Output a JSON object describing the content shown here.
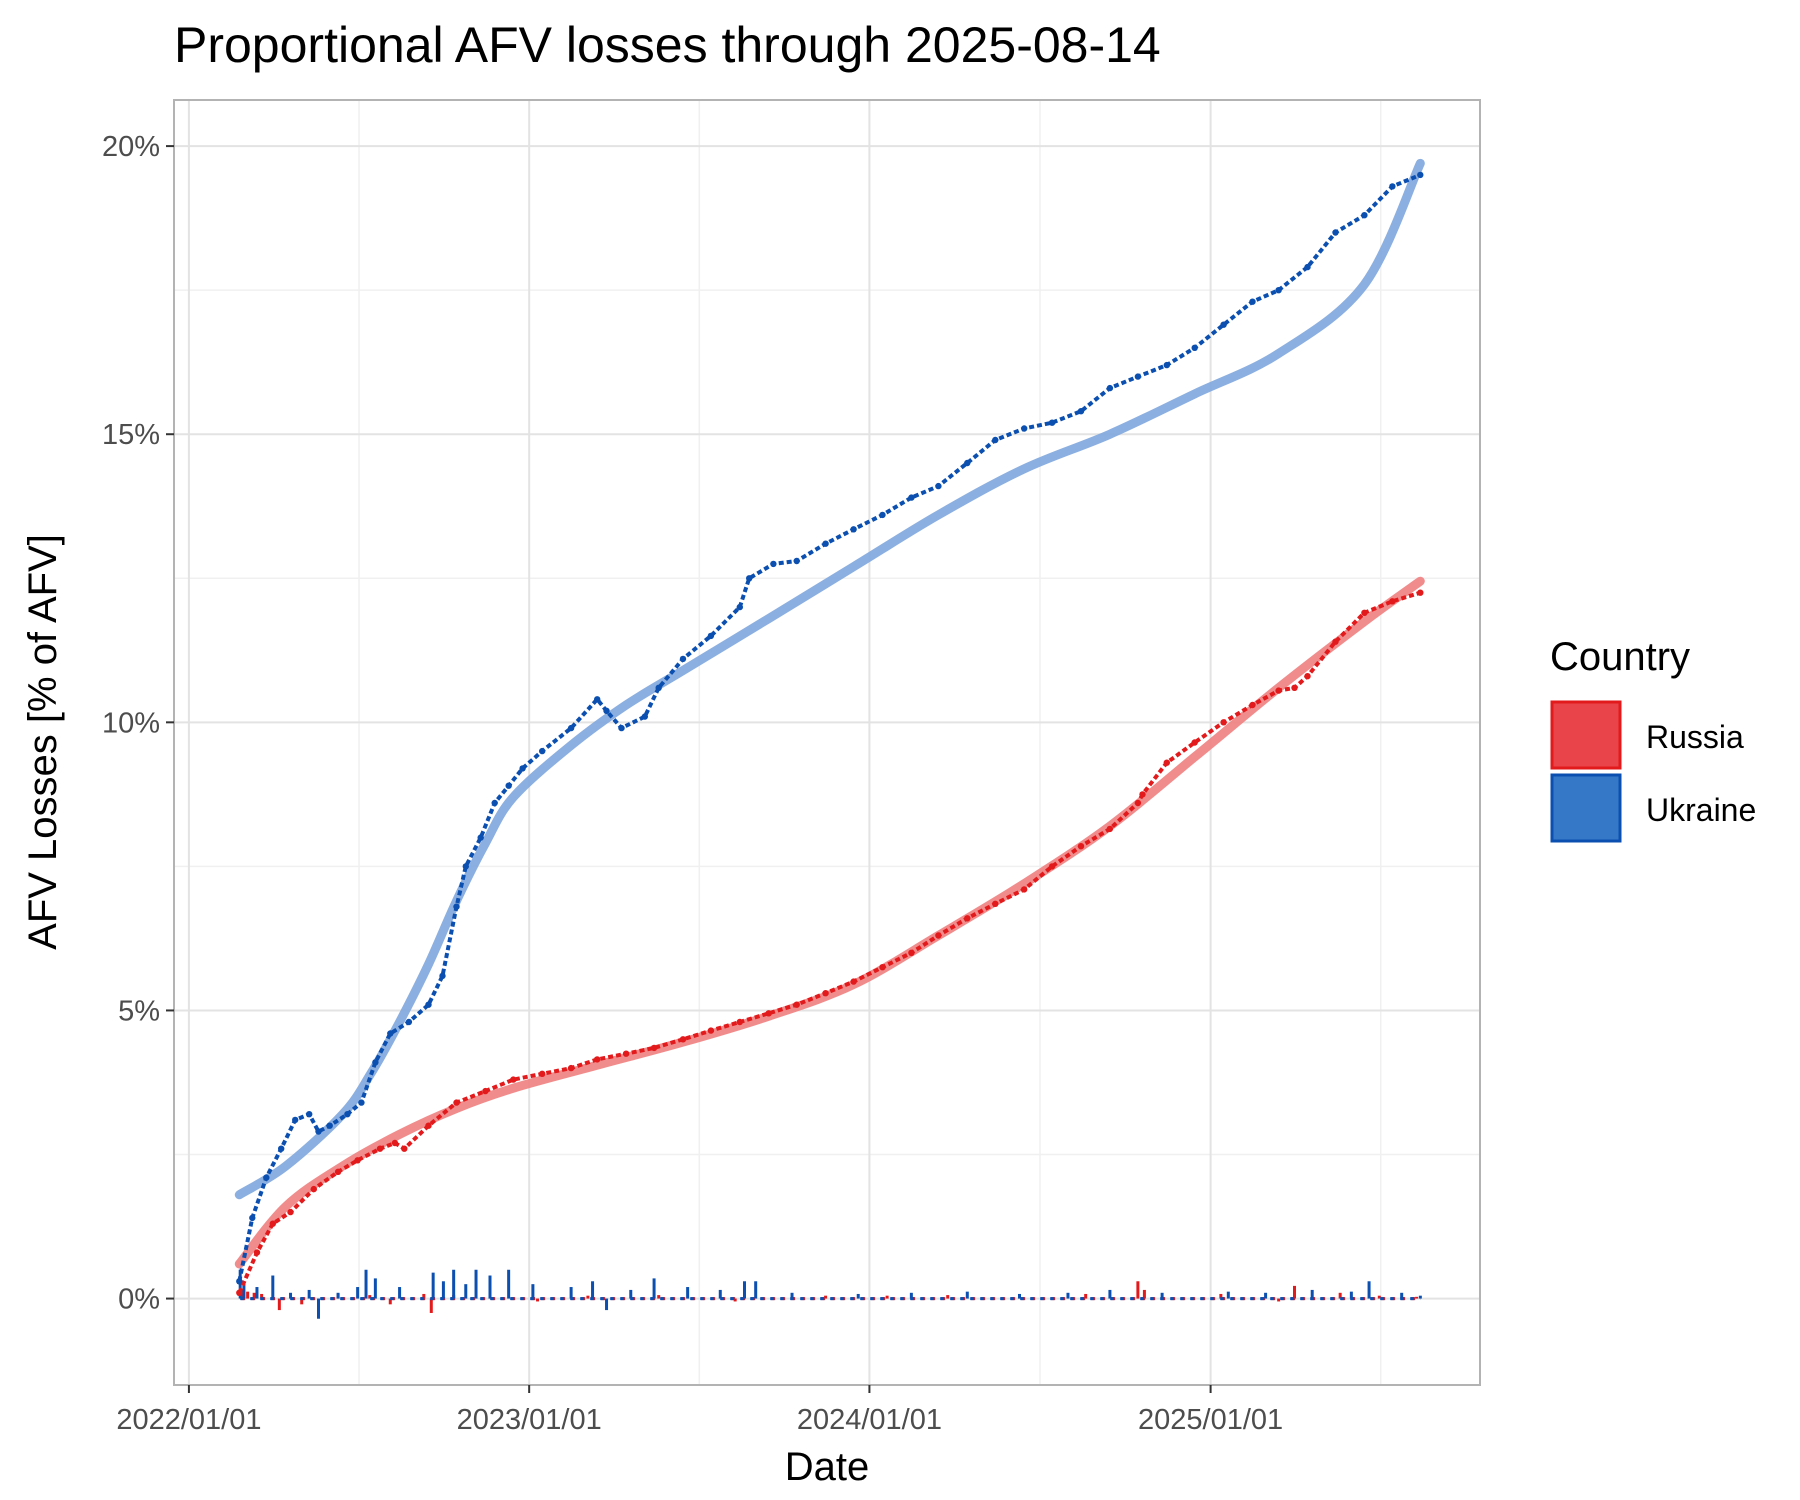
{
  "chart_data": {
    "type": "line",
    "title": "Proportional AFV losses through 2025-08-14",
    "xlabel": "Date",
    "ylabel": "AFV Losses [% of AFV]",
    "x_range": [
      "2021-12-16",
      "2025-10-17"
    ],
    "ylim": [
      -1.5,
      20.8
    ],
    "x_ticks": [
      "2022/01/01",
      "2023/01/01",
      "2024/01/01",
      "2025/01/01"
    ],
    "y_ticks": [
      "0%",
      "5%",
      "10%",
      "15%",
      "20%"
    ],
    "grid": true,
    "legend": {
      "title": "Country",
      "position": "right",
      "entries": [
        "Russia",
        "Ukraine"
      ]
    },
    "colors": {
      "Russia": "#e31a1c",
      "Russia_trend": "#f08080",
      "Ukraine": "#0b4fb0",
      "Ukraine_trend": "#7ea6dd",
      "Russia_legend": "#e8444a",
      "Ukraine_legend": "#3578c8"
    },
    "series": [
      {
        "name": "Russia",
        "x": [
          "2022-02-24",
          "2022-03-15",
          "2022-04-01",
          "2022-04-20",
          "2022-05-15",
          "2022-06-10",
          "2022-07-01",
          "2022-07-25",
          "2022-08-10",
          "2022-08-20",
          "2022-09-15",
          "2022-10-15",
          "2022-11-15",
          "2022-12-15",
          "2023-01-15",
          "2023-02-15",
          "2023-03-15",
          "2023-04-15",
          "2023-05-15",
          "2023-06-15",
          "2023-07-15",
          "2023-08-15",
          "2023-09-15",
          "2023-10-15",
          "2023-11-15",
          "2023-12-15",
          "2024-01-15",
          "2024-02-15",
          "2024-03-15",
          "2024-04-15",
          "2024-05-15",
          "2024-06-15",
          "2024-07-15",
          "2024-08-15",
          "2024-09-15",
          "2024-10-15",
          "2024-10-20",
          "2024-11-15",
          "2024-12-15",
          "2025-01-15",
          "2025-02-15",
          "2025-03-15",
          "2025-04-01",
          "2025-04-15",
          "2025-05-15",
          "2025-06-15",
          "2025-07-15",
          "2025-08-14"
        ],
        "values": [
          0.1,
          0.8,
          1.3,
          1.5,
          1.9,
          2.2,
          2.4,
          2.6,
          2.7,
          2.6,
          3.0,
          3.4,
          3.6,
          3.8,
          3.9,
          4.0,
          4.15,
          4.25,
          4.35,
          4.5,
          4.65,
          4.8,
          4.95,
          5.1,
          5.3,
          5.5,
          5.75,
          6.0,
          6.3,
          6.6,
          6.85,
          7.1,
          7.5,
          7.85,
          8.15,
          8.6,
          8.75,
          9.3,
          9.65,
          10.0,
          10.3,
          10.55,
          10.6,
          10.8,
          11.4,
          11.9,
          12.1,
          12.25
        ]
      },
      {
        "name": "Ukraine",
        "x": [
          "2022-02-24",
          "2022-03-10",
          "2022-03-25",
          "2022-04-10",
          "2022-04-25",
          "2022-05-10",
          "2022-05-20",
          "2022-06-01",
          "2022-06-20",
          "2022-07-05",
          "2022-07-20",
          "2022-08-05",
          "2022-08-25",
          "2022-09-15",
          "2022-09-30",
          "2022-10-15",
          "2022-10-25",
          "2022-11-10",
          "2022-11-25",
          "2022-12-10",
          "2022-12-25",
          "2023-01-15",
          "2023-02-15",
          "2023-03-15",
          "2023-03-25",
          "2023-04-10",
          "2023-05-05",
          "2023-05-20",
          "2023-06-15",
          "2023-07-15",
          "2023-08-15",
          "2023-08-25",
          "2023-09-20",
          "2023-10-15",
          "2023-11-15",
          "2023-12-15",
          "2024-01-15",
          "2024-02-15",
          "2024-03-15",
          "2024-04-15",
          "2024-05-15",
          "2024-06-15",
          "2024-07-15",
          "2024-08-15",
          "2024-09-15",
          "2024-10-15",
          "2024-11-15",
          "2024-12-15",
          "2025-01-15",
          "2025-02-15",
          "2025-03-15",
          "2025-04-15",
          "2025-05-15",
          "2025-06-15",
          "2025-07-15",
          "2025-08-14"
        ],
        "values": [
          0.3,
          1.4,
          2.1,
          2.6,
          3.1,
          3.2,
          2.9,
          3.0,
          3.2,
          3.4,
          4.1,
          4.6,
          4.8,
          5.1,
          5.6,
          6.8,
          7.5,
          8.0,
          8.6,
          8.9,
          9.2,
          9.5,
          9.9,
          10.4,
          10.2,
          9.9,
          10.1,
          10.6,
          11.1,
          11.5,
          12.0,
          12.5,
          12.75,
          12.8,
          13.1,
          13.35,
          13.6,
          13.9,
          14.1,
          14.5,
          14.9,
          15.1,
          15.2,
          15.4,
          15.8,
          16.0,
          16.2,
          16.5,
          16.9,
          17.3,
          17.5,
          17.9,
          18.5,
          18.8,
          19.3,
          19.5
        ]
      },
      {
        "name": "Russia",
        "x": [
          "2022-02-24",
          "2022-04-15",
          "2022-06-15",
          "2022-08-15",
          "2022-10-15",
          "2022-12-15",
          "2023-03-15",
          "2023-06-15",
          "2023-09-15",
          "2023-12-15",
          "2024-03-15",
          "2024-06-15",
          "2024-09-15",
          "2024-12-15",
          "2025-03-15",
          "2025-06-15",
          "2025-08-14"
        ],
        "values": [
          0.6,
          1.6,
          2.3,
          2.85,
          3.3,
          3.65,
          4.05,
          4.45,
          4.9,
          5.45,
          6.3,
          7.2,
          8.2,
          9.4,
          10.6,
          11.75,
          12.45
        ]
      },
      {
        "name": "Ukraine",
        "x": [
          "2022-02-24",
          "2022-04-15",
          "2022-06-15",
          "2022-07-15",
          "2022-08-15",
          "2022-09-15",
          "2022-10-15",
          "2022-11-15",
          "2022-12-15",
          "2023-02-15",
          "2023-04-15",
          "2023-06-15",
          "2023-09-15",
          "2023-12-15",
          "2024-03-15",
          "2024-06-15",
          "2024-09-15",
          "2024-12-15",
          "2025-03-15",
          "2025-06-15",
          "2025-08-14"
        ],
        "values": [
          1.8,
          2.3,
          3.2,
          3.9,
          4.8,
          5.8,
          6.9,
          7.9,
          8.7,
          9.6,
          10.3,
          10.9,
          11.8,
          12.7,
          13.6,
          14.4,
          15.0,
          15.7,
          16.4,
          17.6,
          19.7
        ]
      }
    ],
    "daily_changes": [
      {
        "name": "Russia",
        "x": [
          "2022-02-26",
          "2022-03-05",
          "2022-03-12",
          "2022-03-20",
          "2022-04-08",
          "2022-05-02",
          "2022-06-10",
          "2022-07-14",
          "2022-08-05",
          "2022-09-10",
          "2022-09-18",
          "2022-10-12",
          "2022-11-20",
          "2023-01-10",
          "2023-03-05",
          "2023-05-20",
          "2023-08-10",
          "2023-11-15",
          "2024-01-20",
          "2024-03-25",
          "2024-06-10",
          "2024-08-20",
          "2024-10-15",
          "2024-10-22",
          "2025-01-12",
          "2025-03-15",
          "2025-04-01",
          "2025-05-20",
          "2025-07-01",
          "2025-08-10"
        ],
        "values": [
          0.15,
          0.12,
          0.1,
          0.08,
          -0.2,
          -0.1,
          0.08,
          0.06,
          -0.1,
          0.08,
          -0.25,
          0.06,
          0.05,
          -0.05,
          0.05,
          0.06,
          -0.05,
          0.05,
          0.05,
          0.06,
          0.05,
          0.08,
          0.3,
          0.15,
          0.08,
          -0.05,
          0.22,
          0.1,
          0.05,
          0.03
        ]
      },
      {
        "name": "Ukraine",
        "x": [
          "2022-02-25",
          "2022-03-01",
          "2022-03-15",
          "2022-04-01",
          "2022-04-20",
          "2022-05-10",
          "2022-05-20",
          "2022-06-10",
          "2022-07-01",
          "2022-07-10",
          "2022-07-20",
          "2022-08-15",
          "2022-09-20",
          "2022-10-01",
          "2022-10-12",
          "2022-10-25",
          "2022-11-05",
          "2022-11-20",
          "2022-12-10",
          "2023-01-05",
          "2023-02-15",
          "2023-03-10",
          "2023-03-25",
          "2023-04-20",
          "2023-05-15",
          "2023-06-20",
          "2023-07-25",
          "2023-08-20",
          "2023-09-01",
          "2023-10-10",
          "2023-12-20",
          "2024-02-15",
          "2024-04-15",
          "2024-06-10",
          "2024-08-01",
          "2024-09-15",
          "2024-11-10",
          "2025-01-20",
          "2025-03-01",
          "2025-04-20",
          "2025-06-01",
          "2025-06-20",
          "2025-07-25",
          "2025-08-14"
        ],
        "values": [
          0.5,
          0.3,
          0.2,
          0.4,
          0.1,
          0.15,
          -0.35,
          0.1,
          0.2,
          0.5,
          0.35,
          0.2,
          0.45,
          0.3,
          0.5,
          0.25,
          0.5,
          0.4,
          0.5,
          0.25,
          0.2,
          0.3,
          -0.2,
          0.15,
          0.35,
          0.2,
          0.15,
          0.3,
          0.3,
          0.1,
          0.08,
          0.1,
          0.12,
          0.08,
          0.1,
          0.15,
          0.1,
          0.12,
          0.1,
          0.15,
          0.12,
          0.3,
          0.1,
          0.05
        ]
      }
    ]
  }
}
